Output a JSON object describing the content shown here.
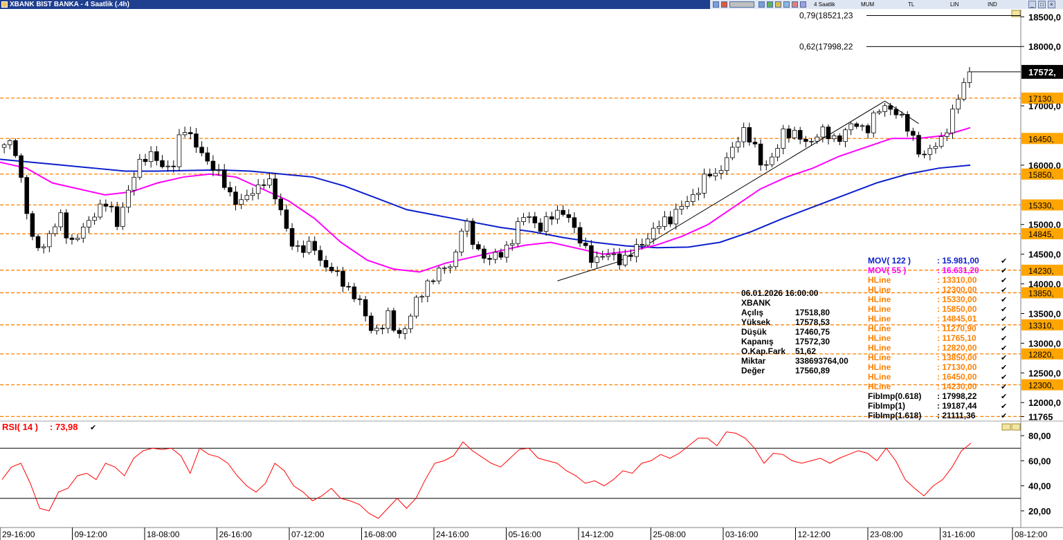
{
  "window": {
    "title": "XBANK BIST BANKA - 4 Saatlik (.4h)",
    "toolbar": {
      "period": "4 Saatlik",
      "chart_type": "MUM",
      "currency": "TL",
      "scale": "LIN",
      "indicators": "IND"
    }
  },
  "colors": {
    "candle_up": "#ffffff",
    "candle_down": "#000000",
    "mov122": "#0a1ecc",
    "mov55": "#ff00ff",
    "hline": "#ff8000",
    "rsi": "#ff0000",
    "title_bar": "#1f3f8f",
    "highlight_label": "#ffa500"
  },
  "chart_data": {
    "type": "candlestick",
    "symbol": "XBANK",
    "x_ticks": [
      "29-16:00",
      "09-12:00",
      "18-08:00",
      "26-16:00",
      "07-12:00",
      "16-08:00",
      "24-16:00",
      "05-16:00",
      "14-12:00",
      "25-08:00",
      "03-16:00",
      "12-12:00",
      "23-08:00",
      "31-16:00",
      "08-12:00"
    ],
    "y_ticks": [
      "18500,0",
      "18000,0",
      "17000,0",
      "16000,0",
      "15000,0",
      "14500,0",
      "14000,0",
      "13500,0",
      "13000,0",
      "12500,0",
      "12000,0",
      "11765"
    ],
    "y_range": [
      11765,
      18600
    ],
    "scale": "linear",
    "close_path": [
      16300,
      16420,
      15600,
      14700,
      14600,
      14900,
      15100,
      14700,
      14850,
      15000,
      15300,
      15400,
      14950,
      15500,
      15900,
      16100,
      16250,
      15900,
      15950,
      16750,
      16400,
      16200,
      16050,
      15800,
      15500,
      15400,
      15450,
      15600,
      15850,
      15400,
      15000,
      14600,
      14550,
      14700,
      14300,
      14200,
      14100,
      13850,
      13650,
      13300,
      13200,
      13450,
      13150,
      13300,
      13700,
      14000,
      14150,
      14250,
      14400,
      15100,
      14700,
      14500,
      14400,
      14500,
      14700,
      15050,
      15150,
      14950,
      15050,
      15200,
      15250,
      14800,
      14600,
      14400,
      14450,
      14500,
      14380,
      14500,
      14700,
      14850,
      15000,
      15100,
      15300,
      15350,
      15600,
      15900,
      15750,
      16150,
      16350,
      16550,
      16400,
      15900,
      16100,
      16600,
      16500,
      16450,
      16400,
      16550,
      16500,
      16450,
      16600,
      16700,
      16600,
      16850,
      17000,
      16950,
      16700,
      16450,
      16150,
      16250,
      16450,
      16800,
      17200,
      17572.3
    ],
    "ma": [
      {
        "name": "MOV( 122 )",
        "value": "15.981,00",
        "path": [
          16100,
          16050,
          16000,
          15950,
          15900,
          15900,
          15910,
          15920,
          15900,
          15850,
          15800,
          15650,
          15450,
          15250,
          15150,
          15050,
          14950,
          14880,
          14780,
          14700,
          14640,
          14610,
          14620,
          14700,
          14880,
          15100,
          15300,
          15500,
          15700,
          15850,
          15950,
          16000
        ]
      },
      {
        "name": "MOV( 55 )",
        "value": "16.631,20",
        "path": [
          16050,
          15950,
          15700,
          15600,
          15500,
          15550,
          15700,
          15800,
          15850,
          15800,
          15600,
          15400,
          15100,
          14700,
          14400,
          14250,
          14200,
          14350,
          14450,
          14550,
          14650,
          14700,
          14600,
          14500,
          14550,
          14650,
          14800,
          15000,
          15300,
          15600,
          15800,
          15950,
          16150,
          16300,
          16450,
          16450,
          16500,
          16631.2
        ]
      }
    ],
    "hlines": [
      {
        "name": "HLine",
        "value": "13310,00",
        "level": 13310
      },
      {
        "name": "HLine",
        "value": "12300,00",
        "level": 12300
      },
      {
        "name": "HLine",
        "value": "15330,00",
        "level": 15330
      },
      {
        "name": "HLine",
        "value": "15850,00",
        "level": 15850
      },
      {
        "name": "HLine",
        "value": "14845,01",
        "level": 14845.01
      },
      {
        "name": "HLine",
        "value": "11270,90",
        "level": 11270.9
      },
      {
        "name": "HLine",
        "value": "11765,10",
        "level": 11765.1
      },
      {
        "name": "HLine",
        "value": "12820,00",
        "level": 12820
      },
      {
        "name": "HLine",
        "value": "13850,00",
        "level": 13850
      },
      {
        "name": "HLine",
        "value": "17130,00",
        "level": 17130
      },
      {
        "name": "HLine",
        "value": "16450,00",
        "level": 16450
      },
      {
        "name": "HLine",
        "value": "14230,00",
        "level": 14230
      }
    ],
    "hline_labels": [
      "17130,",
      "16450,",
      "15850,",
      "15330,",
      "14845,",
      "14230,",
      "13850,",
      "13310,",
      "12820,",
      "12300,"
    ],
    "fib_lines": [
      {
        "label": "0,79(18521,23",
        "level": 18521.23
      },
      {
        "label": "0,62(17998,22",
        "level": 17998.22
      }
    ],
    "fib_legend": [
      {
        "name": "FibImp(0.618)",
        "value": ": 17998,22"
      },
      {
        "name": "FibImp(1)",
        "value": ": 19187,44"
      },
      {
        "name": "FibImp(1.618)",
        "value": ": 21111,36"
      }
    ],
    "last_price_label": "17572,",
    "info": {
      "datetime": "06.01.2026  16:00:00",
      "symbol": "XBANK",
      "rows": [
        {
          "k": "Açılış",
          "v": "17518,80"
        },
        {
          "k": "Yüksek",
          "v": "17578,53"
        },
        {
          "k": "Düşük",
          "v": "17460,75"
        },
        {
          "k": "Kapanış",
          "v": "17572,30"
        },
        {
          "k": "O.Kap.Fark",
          "v": "51,62"
        },
        {
          "k": "Miktar",
          "v": "338693764,00"
        },
        {
          "k": "Değer",
          "v": "17560,89"
        }
      ]
    },
    "rsi": {
      "label": "RSI( 14 )",
      "value": ": 73,98",
      "y_ticks": [
        "80,00",
        "60,00",
        "40,00",
        "20,00"
      ],
      "y_range": [
        10,
        90
      ],
      "levels": [
        70,
        30
      ],
      "path": [
        45,
        55,
        58,
        42,
        22,
        20,
        35,
        38,
        48,
        50,
        45,
        58,
        55,
        48,
        62,
        68,
        70,
        69,
        70,
        64,
        50,
        70,
        65,
        63,
        58,
        48,
        40,
        35,
        42,
        58,
        52,
        40,
        35,
        28,
        32,
        38,
        30,
        28,
        25,
        18,
        14,
        22,
        30,
        22,
        30,
        45,
        58,
        60,
        64,
        75,
        68,
        63,
        58,
        55,
        62,
        69,
        70,
        62,
        60,
        58,
        52,
        48,
        42,
        44,
        40,
        45,
        52,
        50,
        58,
        60,
        65,
        62,
        66,
        72,
        78,
        78,
        72,
        83,
        82,
        78,
        70,
        58,
        66,
        65,
        60,
        58,
        60,
        62,
        58,
        62,
        65,
        68,
        66,
        60,
        70,
        60,
        45,
        38,
        32,
        40,
        45,
        55,
        68,
        73.98
      ]
    }
  }
}
